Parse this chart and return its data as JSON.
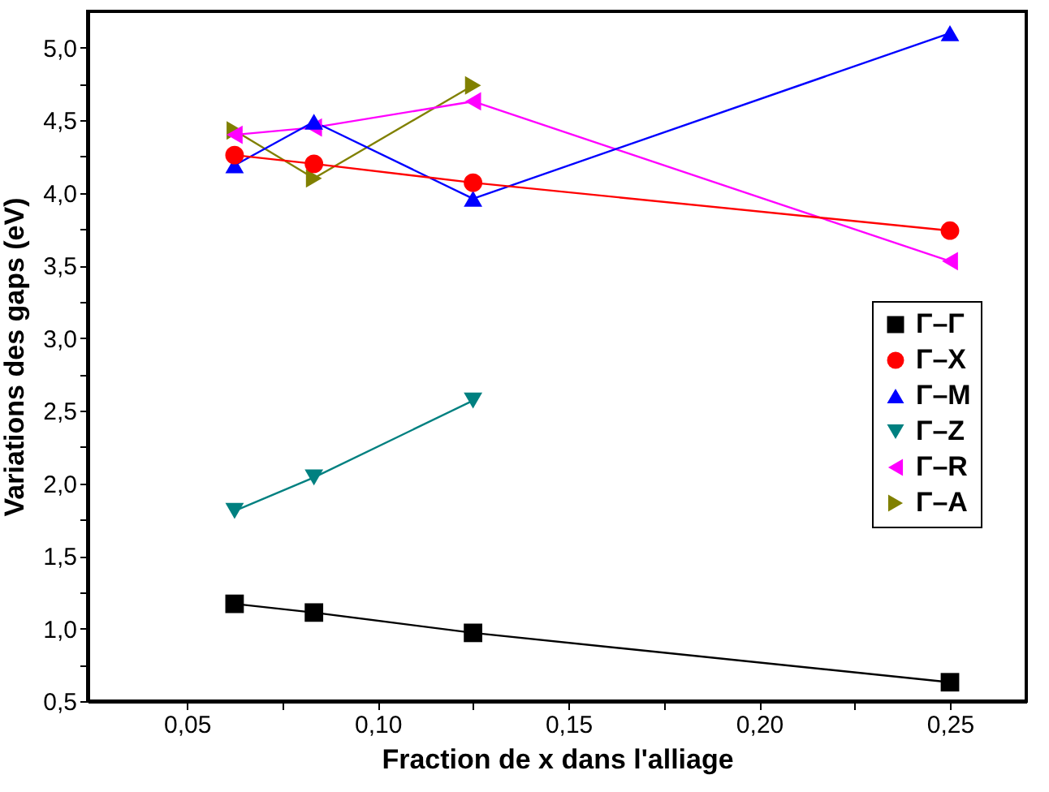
{
  "chart_data": {
    "type": "line",
    "xlabel": "Fraction de x dans l'alliage",
    "ylabel": "Variations des gaps (eV)",
    "x": [
      0.0625,
      0.0833,
      0.125,
      0.25
    ],
    "series": [
      {
        "name": "Γ–Γ",
        "color": "#000000",
        "marker": "square",
        "values": [
          1.17,
          1.11,
          0.97,
          0.63
        ]
      },
      {
        "name": "Γ–X",
        "color": "#ff0000",
        "marker": "circle",
        "values": [
          4.26,
          4.2,
          4.07,
          3.74
        ]
      },
      {
        "name": "Γ–M",
        "color": "#0000ff",
        "marker": "triangle-up",
        "values": [
          4.19,
          4.49,
          3.96,
          5.1
        ]
      },
      {
        "name": "Γ–Z",
        "color": "#008080",
        "marker": "triangle-down",
        "values": [
          1.81,
          2.04,
          2.57,
          null
        ]
      },
      {
        "name": "Γ–R",
        "color": "#ff00ff",
        "marker": "triangle-left",
        "values": [
          4.4,
          4.45,
          4.63,
          3.53
        ]
      },
      {
        "name": "Γ–A",
        "color": "#808000",
        "marker": "triangle-right",
        "values": [
          4.43,
          4.1,
          4.74,
          null
        ]
      }
    ],
    "xlim": [
      0.024,
      0.27
    ],
    "xticks": [
      {
        "value": 0.05,
        "label": "0,05"
      },
      {
        "value": 0.075,
        "label": null
      },
      {
        "value": 0.1,
        "label": "0,10"
      },
      {
        "value": 0.125,
        "label": null
      },
      {
        "value": 0.15,
        "label": "0,15"
      },
      {
        "value": 0.175,
        "label": null
      },
      {
        "value": 0.2,
        "label": "0,20"
      },
      {
        "value": 0.225,
        "label": null
      },
      {
        "value": 0.25,
        "label": "0,25"
      }
    ],
    "ylim": [
      0.5,
      5.25
    ],
    "yticks": [
      {
        "value": 0.5,
        "label": "0,5"
      },
      {
        "value": 0.75,
        "label": null
      },
      {
        "value": 1.0,
        "label": "1,0"
      },
      {
        "value": 1.25,
        "label": null
      },
      {
        "value": 1.5,
        "label": "1,5"
      },
      {
        "value": 1.75,
        "label": null
      },
      {
        "value": 2.0,
        "label": "2,0"
      },
      {
        "value": 2.25,
        "label": null
      },
      {
        "value": 2.5,
        "label": "2,5"
      },
      {
        "value": 2.75,
        "label": null
      },
      {
        "value": 3.0,
        "label": "3,0"
      },
      {
        "value": 3.25,
        "label": null
      },
      {
        "value": 3.5,
        "label": "3,5"
      },
      {
        "value": 3.75,
        "label": null
      },
      {
        "value": 4.0,
        "label": "4,0"
      },
      {
        "value": 4.25,
        "label": null
      },
      {
        "value": 4.5,
        "label": "4,5"
      },
      {
        "value": 4.75,
        "label": null
      },
      {
        "value": 5.0,
        "label": "5,0"
      }
    ],
    "legend": "right",
    "grid": false
  }
}
